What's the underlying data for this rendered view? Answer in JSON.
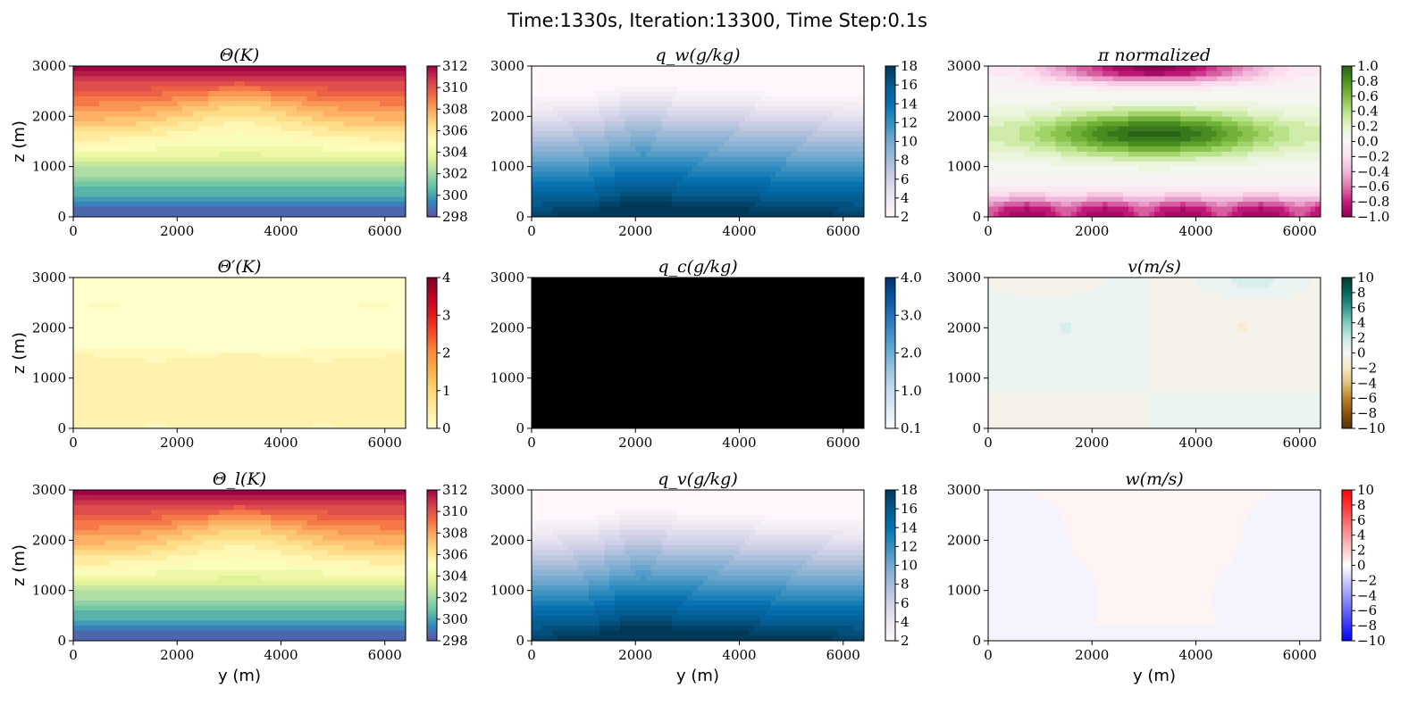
{
  "chart_data": {
    "title": "Time:1330s, Iteration:13300, Time Step:0.1s",
    "type": "heatmap",
    "panels": [
      {
        "id": "theta",
        "title": "Θ(K)",
        "cmap": "Spectral_r",
        "field": "theta",
        "colorbar": {
          "ticks": [
            "298",
            "300",
            "302",
            "304",
            "306",
            "308",
            "310",
            "312"
          ],
          "range": [
            298,
            312
          ]
        },
        "ylabel": "z (m)",
        "xlabel": ""
      },
      {
        "id": "qw",
        "title": "q_w(g/kg)",
        "cmap": "PuBu",
        "field": "qw",
        "colorbar": {
          "ticks": [
            "2",
            "4",
            "6",
            "8",
            "10",
            "12",
            "14",
            "16",
            "18"
          ],
          "range": [
            2,
            18
          ]
        },
        "ylabel": "",
        "xlabel": ""
      },
      {
        "id": "pi",
        "title": "π normalized",
        "cmap": "PiYG",
        "field": "pi",
        "colorbar": {
          "ticks": [
            "−1.0",
            "−0.8",
            "−0.6",
            "−0.4",
            "−0.2",
            "0.0",
            "0.2",
            "0.4",
            "0.6",
            "0.8",
            "1.0"
          ],
          "range": [
            -1,
            1
          ]
        },
        "ylabel": "",
        "xlabel": ""
      },
      {
        "id": "thetap",
        "title": "Θ′(K)",
        "cmap": "YlOrRd",
        "field": "thetap",
        "colorbar": {
          "ticks": [
            "0",
            "1",
            "2",
            "3",
            "4"
          ],
          "range": [
            0,
            4
          ]
        },
        "ylabel": "z (m)",
        "xlabel": ""
      },
      {
        "id": "qc",
        "title": "q_c(g/kg)",
        "cmap": "Blues",
        "field": "qc",
        "colorbar": {
          "ticks": [
            "0.1",
            "1.0",
            "2.0",
            "3.0",
            "4.0"
          ],
          "range": [
            0.1,
            4.0
          ]
        },
        "ylabel": "",
        "xlabel": ""
      },
      {
        "id": "v",
        "title": "v(m/s)",
        "cmap": "BrBG",
        "field": "v",
        "colorbar": {
          "ticks": [
            "−10",
            "−8",
            "−6",
            "−4",
            "−2",
            "0",
            "2",
            "4",
            "6",
            "8",
            "10"
          ],
          "range": [
            -10,
            10
          ]
        },
        "ylabel": "",
        "xlabel": ""
      },
      {
        "id": "thetal",
        "title": "Θ_l(K)",
        "cmap": "Spectral_r",
        "field": "theta",
        "colorbar": {
          "ticks": [
            "298",
            "300",
            "302",
            "304",
            "306",
            "308",
            "310",
            "312"
          ],
          "range": [
            298,
            312
          ]
        },
        "ylabel": "z (m)",
        "xlabel": "y (m)"
      },
      {
        "id": "qv",
        "title": "q_v(g/kg)",
        "cmap": "PuBu",
        "field": "qw",
        "colorbar": {
          "ticks": [
            "2",
            "4",
            "6",
            "8",
            "10",
            "12",
            "14",
            "16",
            "18"
          ],
          "range": [
            2,
            18
          ]
        },
        "ylabel": "",
        "xlabel": "y (m)"
      },
      {
        "id": "w",
        "title": "w(m/s)",
        "cmap": "bwr",
        "field": "w",
        "colorbar": {
          "ticks": [
            "−10",
            "−8",
            "−6",
            "−4",
            "−2",
            "0",
            "2",
            "4",
            "6",
            "8",
            "10"
          ],
          "range": [
            -10,
            10
          ]
        },
        "ylabel": "",
        "xlabel": "y (m)"
      }
    ],
    "xaxis": {
      "ticks": [
        "0",
        "2000",
        "4000",
        "6000"
      ],
      "range": [
        0,
        6400
      ]
    },
    "yaxis": {
      "ticks": [
        "0",
        "1000",
        "2000",
        "3000"
      ],
      "range": [
        0,
        3000
      ]
    }
  }
}
